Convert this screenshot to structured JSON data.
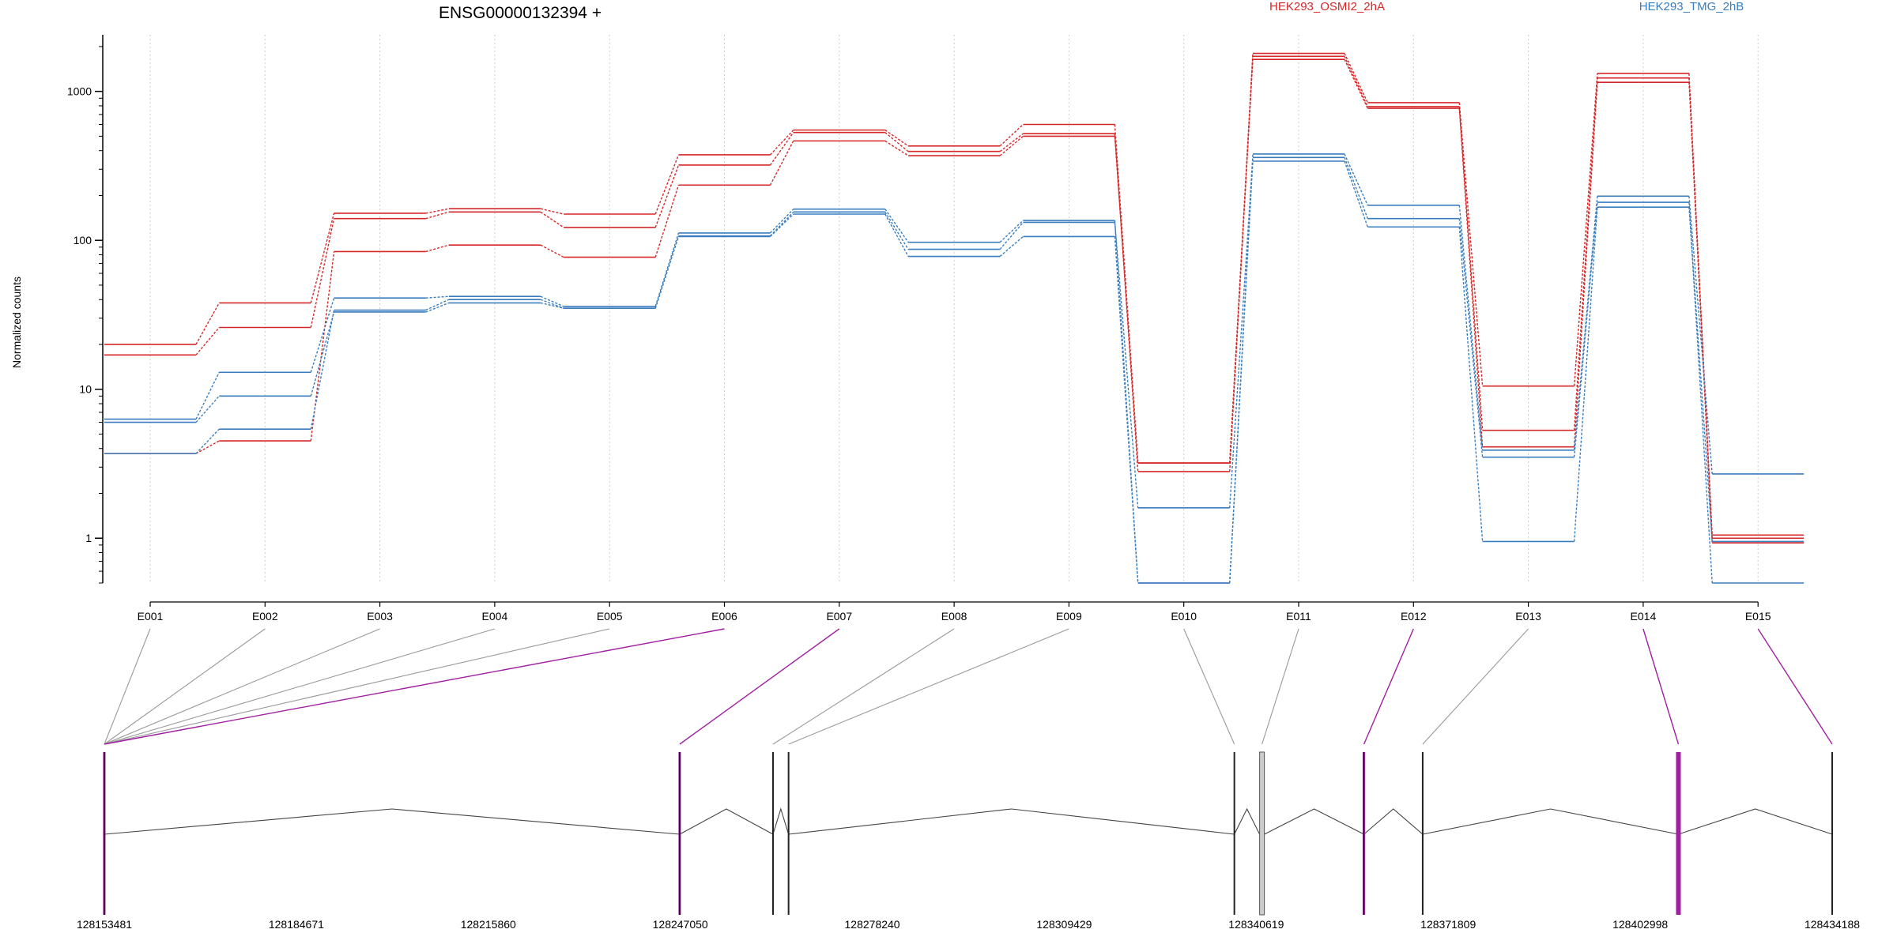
{
  "chart_data": {
    "type": "line",
    "title": "ENSG00000132394 +",
    "ylabel": "Normalized counts",
    "xlabel": "",
    "yscale": "log",
    "ylim": [
      0.5,
      2400
    ],
    "y_ticks": [
      1,
      10,
      100,
      1000
    ],
    "y_tick_labels": [
      "1",
      "10",
      "100",
      "1000"
    ],
    "grid": "vertical dotted",
    "legend_placement": "top-right",
    "categories": [
      "E001",
      "E002",
      "E003",
      "E004",
      "E005",
      "E006",
      "E007",
      "E008",
      "E009",
      "E010",
      "E011",
      "E012",
      "E013",
      "E014",
      "E015"
    ],
    "groups": [
      {
        "name": "HEK293_OSMI2_2hA",
        "color": "#d62728"
      },
      {
        "name": "HEK293_TMG_2hB",
        "color": "#3a7dbf"
      }
    ],
    "series": [
      {
        "group": 0,
        "color": "#d62728",
        "values": [
          20,
          38,
          152,
          163,
          150,
          375,
          550,
          430,
          600,
          3.2,
          1800,
          840,
          10.5,
          1320,
          1.05
        ]
      },
      {
        "group": 0,
        "color": "#d62728",
        "values": [
          17,
          26,
          140,
          155,
          122,
          320,
          530,
          395,
          520,
          2.8,
          1720,
          790,
          5.3,
          1230,
          1.0
        ]
      },
      {
        "group": 0,
        "color": "#d62728",
        "values": [
          3.7,
          4.5,
          84,
          93,
          77,
          235,
          465,
          370,
          500,
          3.2,
          1640,
          770,
          4.1,
          1150,
          0.93
        ]
      },
      {
        "group": 1,
        "color": "#3a7dbf",
        "values": [
          6.3,
          13,
          41,
          42,
          36,
          112,
          162,
          97,
          136,
          0.5,
          380,
          172,
          3.9,
          198,
          2.7
        ]
      },
      {
        "group": 1,
        "color": "#3a7dbf",
        "values": [
          6.0,
          9,
          33,
          38,
          35,
          107,
          155,
          87,
          132,
          1.6,
          360,
          140,
          3.5,
          180,
          0.5
        ]
      },
      {
        "group": 1,
        "color": "#3a7dbf",
        "values": [
          3.7,
          5.4,
          34,
          40,
          35,
          106,
          150,
          78,
          106,
          0.5,
          340,
          123,
          0.95,
          167,
          0.95
        ]
      }
    ],
    "gene_model": {
      "coord_ticks": [
        "128153481",
        "128184671",
        "128215860",
        "128247050",
        "128278240",
        "128309429",
        "128340619",
        "128371809",
        "128402998",
        "128434188"
      ],
      "exon_mapping": [
        {
          "exon": "E001",
          "to": 0.0,
          "highlight": false
        },
        {
          "exon": "E002",
          "to": 0.0,
          "highlight": false
        },
        {
          "exon": "E003",
          "to": 0.0,
          "highlight": false
        },
        {
          "exon": "E004",
          "to": 0.0,
          "highlight": false
        },
        {
          "exon": "E005",
          "to": 0.0,
          "highlight": false
        },
        {
          "exon": "E006",
          "to": 0.0,
          "highlight": true
        },
        {
          "exon": "E007",
          "to": 0.333,
          "highlight": true
        },
        {
          "exon": "E008",
          "to": 0.387,
          "highlight": false
        },
        {
          "exon": "E009",
          "to": 0.396,
          "highlight": false
        },
        {
          "exon": "E010",
          "to": 0.654,
          "highlight": false
        },
        {
          "exon": "E011",
          "to": 0.67,
          "highlight": false
        },
        {
          "exon": "E012",
          "to": 0.729,
          "highlight": true
        },
        {
          "exon": "E013",
          "to": 0.763,
          "highlight": false
        },
        {
          "exon": "E014",
          "to": 0.911,
          "highlight": true
        },
        {
          "exon": "E015",
          "to": 1.0,
          "highlight": true
        }
      ],
      "exons": [
        {
          "pos": 0.0,
          "highlight": true
        },
        {
          "pos": 0.333,
          "highlight": true
        },
        {
          "pos": 0.387,
          "highlight": false
        },
        {
          "pos": 0.396,
          "highlight": false
        },
        {
          "pos": 0.654,
          "highlight": false
        },
        {
          "pos": 0.67,
          "highlight": false,
          "wide": true
        },
        {
          "pos": 0.729,
          "highlight": true
        },
        {
          "pos": 0.763,
          "highlight": false
        },
        {
          "pos": 0.911,
          "highlight": true,
          "thick": true
        },
        {
          "pos": 1.0,
          "highlight": false
        }
      ],
      "colors": {
        "highlight": "#a020a0",
        "normal": "#444444"
      }
    }
  }
}
